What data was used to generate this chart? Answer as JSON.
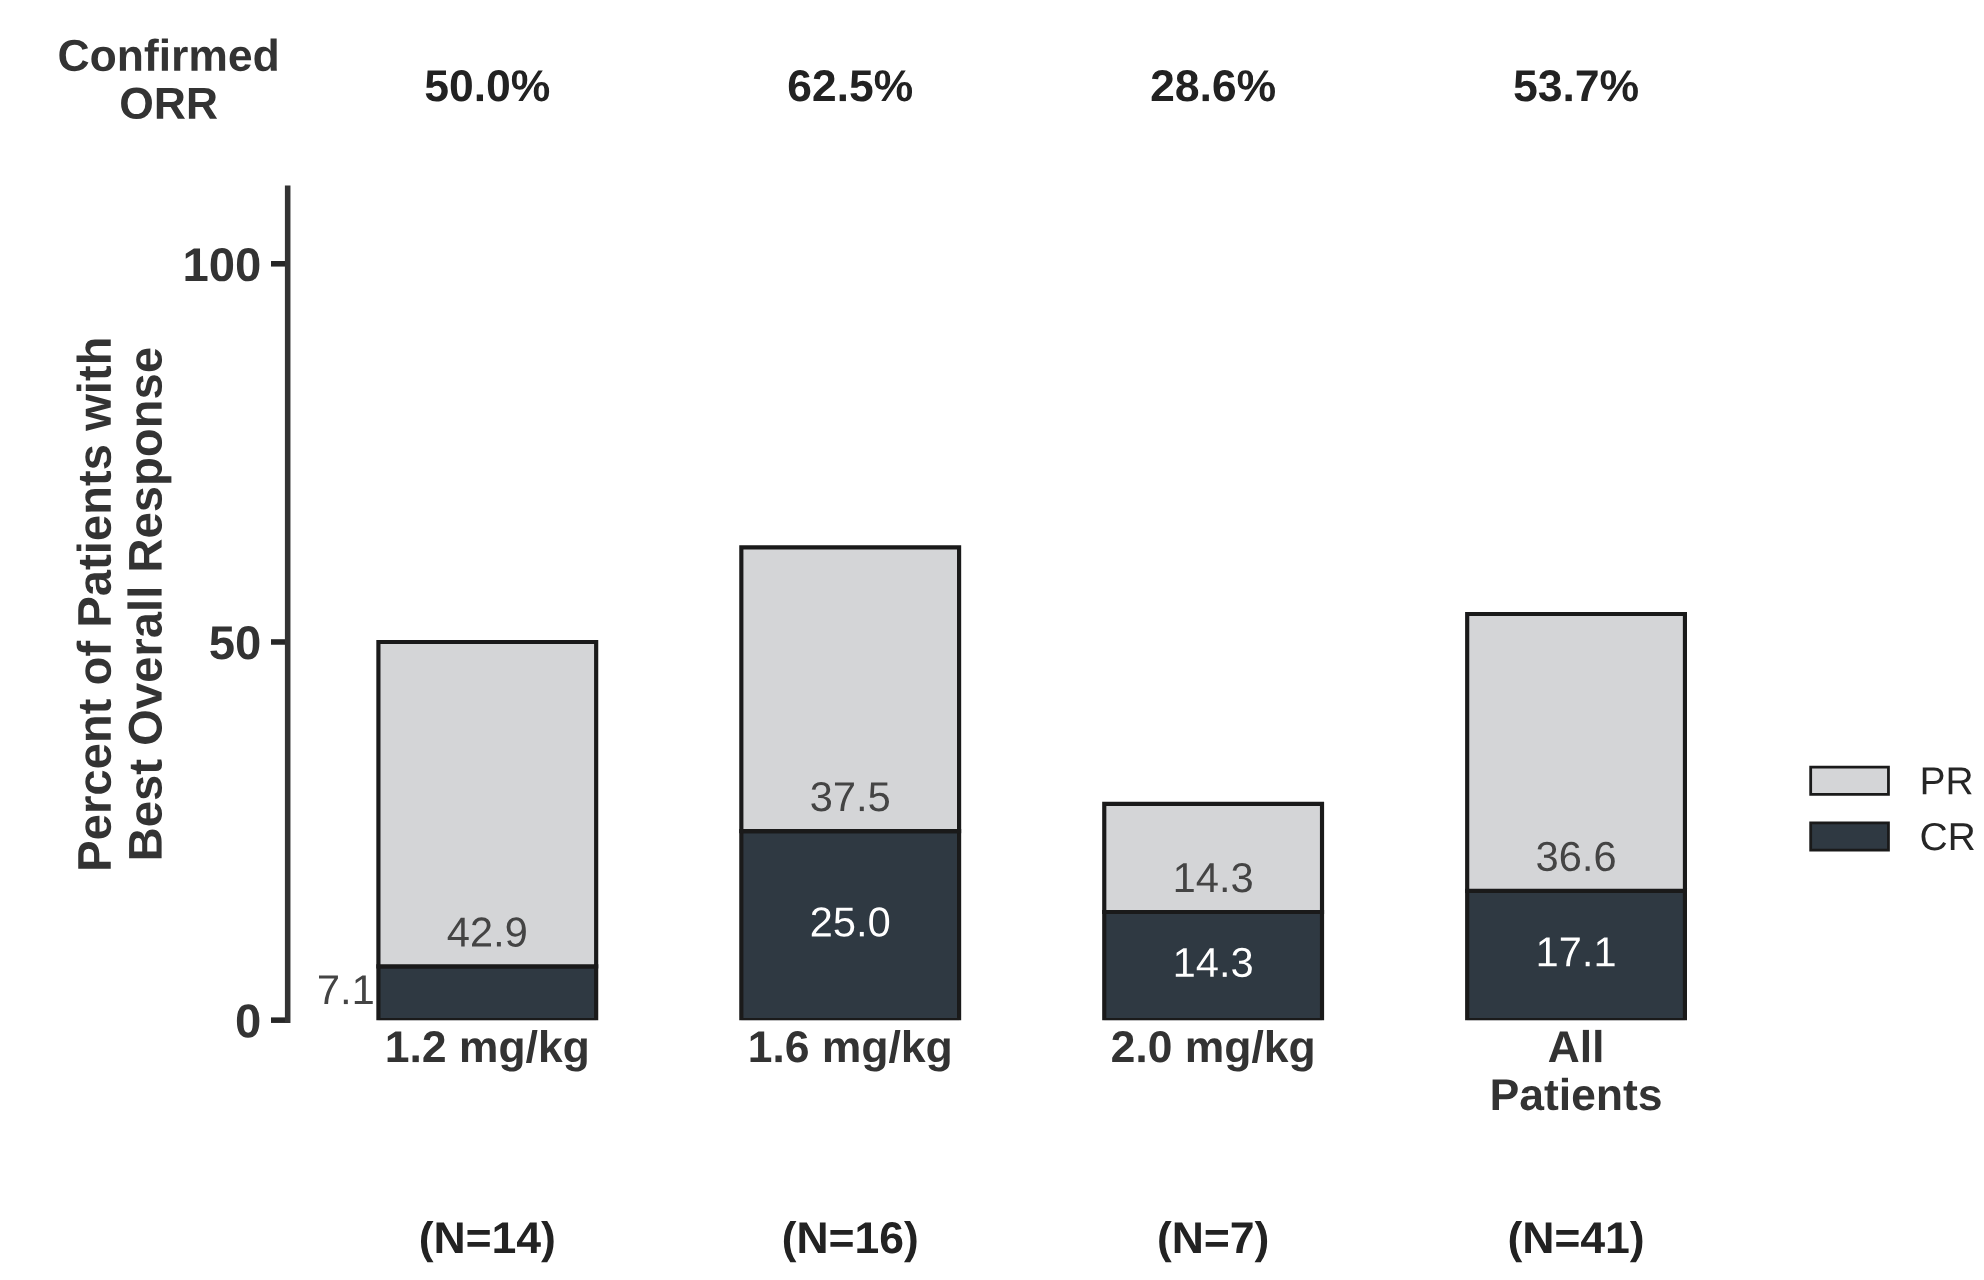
{
  "chart_data": {
    "type": "bar",
    "stacked": true,
    "categories": [
      "1.2 mg/kg",
      "1.6 mg/kg",
      "2.0 mg/kg",
      "All\nPatients"
    ],
    "series": [
      {
        "name": "CR",
        "color": "#2f3942",
        "values": [
          7.1,
          25.0,
          14.3,
          17.1
        ],
        "value_labels": [
          "7.1",
          "25.0",
          "14.3",
          "17.1"
        ]
      },
      {
        "name": "PR",
        "color": "#d4d5d7",
        "values": [
          42.9,
          37.5,
          14.3,
          36.6
        ],
        "value_labels": [
          "42.9",
          "37.5",
          "14.3",
          "36.6"
        ]
      }
    ],
    "ylabel": "Percent of Patients with\nBest Overall Response",
    "ylim": [
      0,
      110
    ],
    "yticks": [
      0,
      50,
      100
    ],
    "legend": "right",
    "grid": false,
    "annotations": [
      "Confirmed\nORR",
      "50.0%",
      "62.5%",
      "28.6%",
      "53.7%",
      "(N=14)",
      "(N=16)",
      "(N=7)",
      "(N=41)"
    ]
  }
}
